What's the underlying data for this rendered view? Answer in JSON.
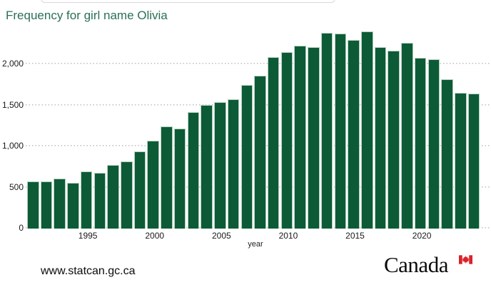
{
  "title": "Frequency for girl name Olivia",
  "footer": {
    "website": "www.statcan.gc.ca",
    "wordmark": "Canada",
    "flag_icon": "canada-flag-icon"
  },
  "colors": {
    "bar_fill": "#0c5b36",
    "bar_border": "#b5cfbe",
    "title_green": "#2b7054",
    "axis_text": "#1a1a1a",
    "gridline": "#bfbfbf",
    "flag_red": "#d8232a",
    "background": "#ffffff"
  },
  "chart_data": {
    "type": "bar",
    "title": "Frequency for girl name Olivia",
    "xlabel": "year",
    "ylabel": "",
    "x": [
      1991,
      1992,
      1993,
      1994,
      1995,
      1996,
      1997,
      1998,
      1999,
      2000,
      2001,
      2002,
      2003,
      2004,
      2005,
      2006,
      2007,
      2008,
      2009,
      2010,
      2011,
      2012,
      2013,
      2014,
      2015,
      2016,
      2017,
      2018,
      2019,
      2020,
      2021,
      2022,
      2023,
      2024
    ],
    "values": [
      575,
      575,
      610,
      560,
      695,
      680,
      775,
      815,
      940,
      1070,
      1245,
      1220,
      1420,
      1505,
      1540,
      1570,
      1750,
      1865,
      2090,
      2145,
      2225,
      2205,
      2380,
      2370,
      2295,
      2400,
      2210,
      2165,
      2265,
      2080,
      2060,
      1820,
      1655,
      1640
    ],
    "ylim": [
      0,
      2480
    ],
    "yticks": [
      0,
      500,
      1000,
      1500,
      2000
    ],
    "ytick_labels": [
      "0",
      "500",
      "1,000",
      "1,500",
      "2,000"
    ],
    "xticks": [
      1995,
      2000,
      2005,
      2010,
      2015,
      2020
    ],
    "grid": "horizontal-dotted",
    "legend": "none"
  }
}
